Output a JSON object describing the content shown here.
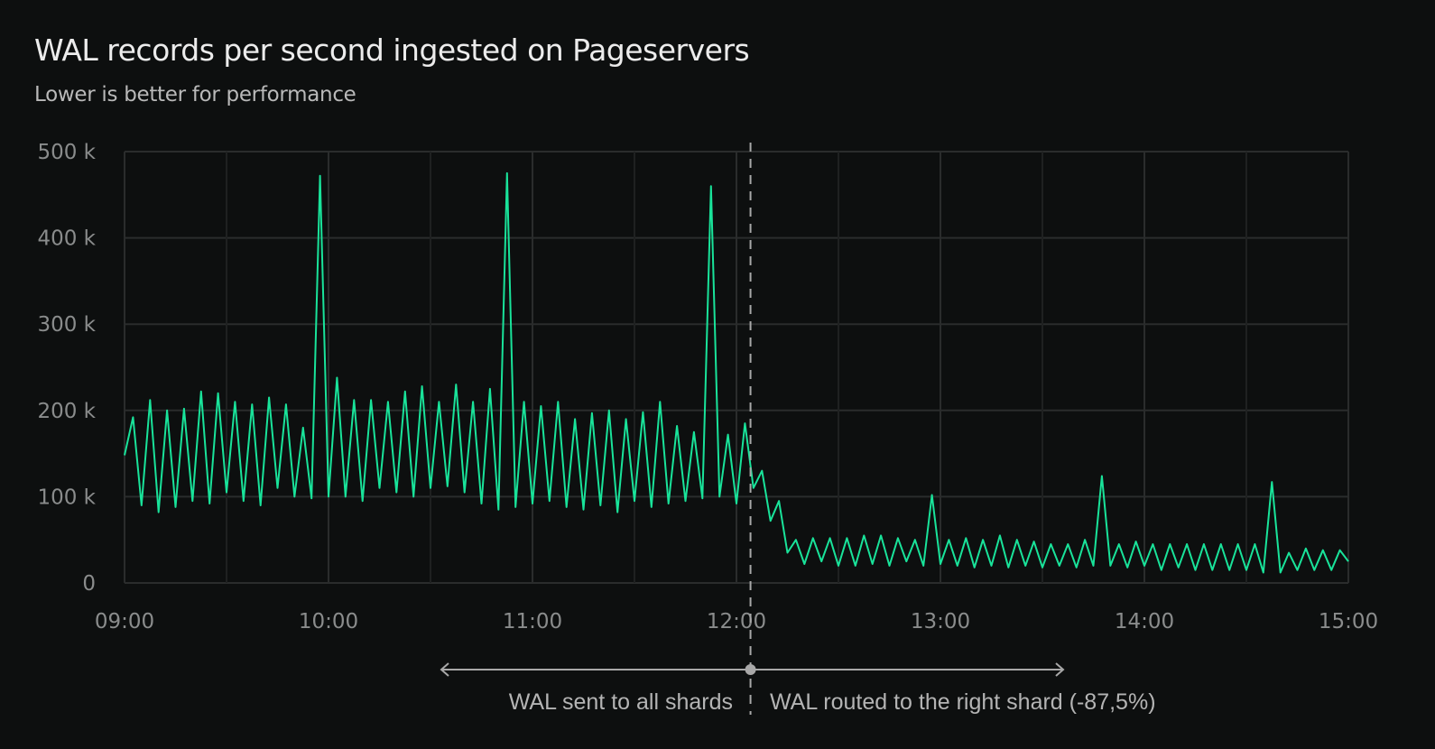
{
  "chart_data": {
    "type": "line",
    "title": "WAL records per second ingested on Pageservers",
    "subtitle": "Lower is better for performance",
    "xlabel": "",
    "ylabel": "",
    "x_ticks": [
      "09:00",
      "10:00",
      "11:00",
      "12:00",
      "13:00",
      "14:00",
      "15:00"
    ],
    "y_ticks": [
      "0",
      "100 k",
      "200 k",
      "300 k",
      "400 k",
      "500 k"
    ],
    "ylim": [
      0,
      500000
    ],
    "xlim": [
      "09:00",
      "15:00"
    ],
    "grid": true,
    "line_color": "#19e39a",
    "series": [
      {
        "start": "09:00",
        "interval_minutes": 2.5,
        "values_k": [
          148,
          192,
          90,
          212,
          82,
          200,
          88,
          202,
          95,
          222,
          92,
          220,
          105,
          210,
          95,
          207,
          90,
          215,
          110,
          207,
          100,
          180,
          98,
          472,
          100,
          238,
          100,
          212,
          95,
          212,
          110,
          210,
          105,
          222,
          100,
          228,
          110,
          210,
          112,
          230,
          105,
          210,
          92,
          225,
          85,
          475,
          88,
          210,
          92,
          205,
          95,
          210,
          88,
          190,
          85,
          197,
          90,
          200,
          82,
          190,
          95,
          198,
          88,
          210,
          92,
          182,
          95,
          175,
          98,
          460,
          100,
          172,
          92,
          185,
          110,
          130,
          72,
          95,
          35,
          50,
          22,
          52,
          25,
          52,
          20,
          52,
          20,
          55,
          22,
          55,
          20,
          52,
          25,
          50,
          20,
          102,
          22,
          50,
          20,
          52,
          18,
          50,
          20,
          55,
          18,
          50,
          20,
          48,
          18,
          45,
          20,
          45,
          18,
          50,
          20,
          124,
          20,
          45,
          18,
          48,
          20,
          45,
          15,
          45,
          18,
          45,
          15,
          45,
          15,
          45,
          15,
          45,
          15,
          45,
          12,
          117,
          12,
          35,
          15,
          40,
          15,
          38,
          15,
          38,
          25
        ]
      }
    ],
    "annotations": {
      "event_time": "12:04",
      "left_label": "WAL sent to all shards",
      "right_label": "WAL routed to the right shard (-87,5%)"
    }
  },
  "colors": {
    "background": "#0d0f0f",
    "grid": "#2a2c2c",
    "line": "#19e39a",
    "annotation": "#a8a8a8"
  }
}
